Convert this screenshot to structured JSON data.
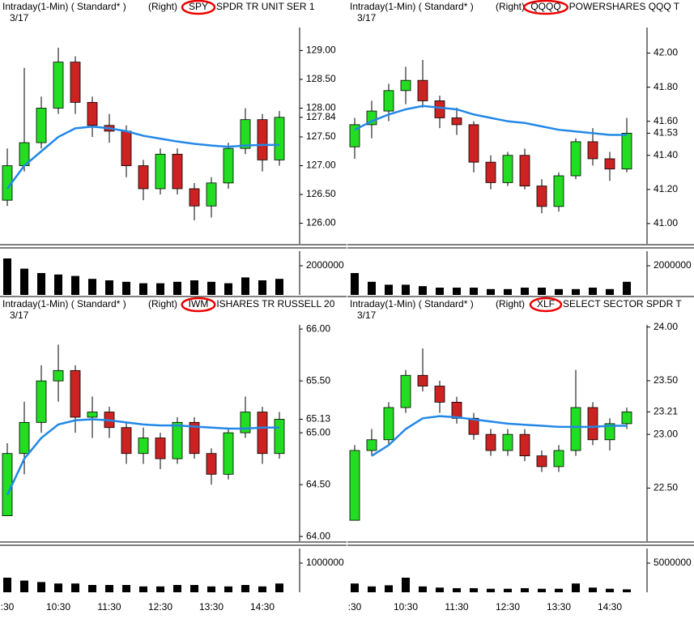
{
  "chart_data": [
    {
      "type": "candlestick",
      "study": "Intraday(1-Min) ( Standard* )",
      "side": "(Right)",
      "ticker": "SPY",
      "name": "SPDR TR UNIT SER 1",
      "date": "3/17",
      "x": [
        "9:30",
        "9:50",
        "10:10",
        "10:30",
        "10:50",
        "11:10",
        "11:30",
        "11:50",
        "12:10",
        "12:30",
        "12:50",
        "13:10",
        "13:30",
        "13:50",
        "14:10",
        "14:30",
        "14:50"
      ],
      "open": [
        126.4,
        127.0,
        127.4,
        128.0,
        128.8,
        128.1,
        127.7,
        127.6,
        127.0,
        126.6,
        127.2,
        126.6,
        126.3,
        126.7,
        127.3,
        127.8,
        127.1
      ],
      "high": [
        127.3,
        128.7,
        128.2,
        129.05,
        128.9,
        128.2,
        127.9,
        127.7,
        127.1,
        127.3,
        127.3,
        126.7,
        126.8,
        127.4,
        128.0,
        127.9,
        127.95
      ],
      "low": [
        126.3,
        126.9,
        127.3,
        127.9,
        127.9,
        127.5,
        127.4,
        126.8,
        126.4,
        126.5,
        126.5,
        126.05,
        126.1,
        126.6,
        127.2,
        126.9,
        127.0
      ],
      "close": [
        127.0,
        127.4,
        128.0,
        128.8,
        128.1,
        127.7,
        127.6,
        127.0,
        126.6,
        127.2,
        126.6,
        126.3,
        126.7,
        127.3,
        127.8,
        127.1,
        127.84
      ],
      "ma": [
        126.6,
        127.0,
        127.25,
        127.5,
        127.65,
        127.68,
        127.65,
        127.6,
        127.52,
        127.47,
        127.42,
        127.38,
        127.35,
        127.33,
        127.35,
        127.36,
        127.36
      ],
      "volume": [
        2500000,
        1800000,
        1500000,
        1400000,
        1300000,
        1100000,
        1000000,
        900000,
        800000,
        800000,
        900000,
        1000000,
        900000,
        800000,
        1200000,
        1000000,
        1100000
      ],
      "ylim": [
        125.67,
        129.4
      ],
      "yticks": [
        {
          "value": 126,
          "label": "126.00"
        },
        {
          "value": 126.5,
          "label": "126.50"
        },
        {
          "value": 127,
          "label": "127.00"
        },
        {
          "value": 127.5,
          "label": "127.50"
        },
        {
          "value": 128,
          "label": "128.00"
        },
        {
          "value": 128.5,
          "label": "128.50"
        },
        {
          "value": 129,
          "label": "129.00"
        }
      ],
      "last_price": 127.84,
      "volume_ylim": [
        0,
        3000000
      ],
      "volume_yticks": [
        2000000
      ],
      "up_color": "#22dd22",
      "down_color": "#cc2222",
      "ma_color": "#2288e8"
    },
    {
      "type": "candlestick",
      "study": "Intraday(1-Min) ( Standard* )",
      "side": "(Right)",
      "ticker": "QQQQ",
      "name": "POWERSHARES QQQ T",
      "date": "3/17",
      "x": [
        "9:30",
        "9:50",
        "10:10",
        "10:30",
        "10:50",
        "11:10",
        "11:30",
        "11:50",
        "12:10",
        "12:30",
        "12:50",
        "13:10",
        "13:30",
        "13:50",
        "14:10",
        "14:30",
        "14:50"
      ],
      "open": [
        41.45,
        41.58,
        41.66,
        41.78,
        41.84,
        41.72,
        41.62,
        41.58,
        41.36,
        41.24,
        41.4,
        41.22,
        41.1,
        41.28,
        41.48,
        41.38,
        41.32
      ],
      "high": [
        41.62,
        41.72,
        41.82,
        41.92,
        41.96,
        41.75,
        41.68,
        41.6,
        41.4,
        41.42,
        41.44,
        41.26,
        41.3,
        41.5,
        41.56,
        41.42,
        41.62
      ],
      "low": [
        41.38,
        41.5,
        41.6,
        41.7,
        41.68,
        41.56,
        41.52,
        41.3,
        41.2,
        41.22,
        41.2,
        41.06,
        41.07,
        41.26,
        41.34,
        41.25,
        41.3
      ],
      "close": [
        41.58,
        41.66,
        41.78,
        41.84,
        41.72,
        41.62,
        41.58,
        41.36,
        41.24,
        41.4,
        41.22,
        41.1,
        41.28,
        41.48,
        41.38,
        41.32,
        41.53
      ],
      "ma": [
        41.55,
        41.6,
        41.64,
        41.67,
        41.69,
        41.68,
        41.67,
        41.64,
        41.62,
        41.6,
        41.59,
        41.57,
        41.55,
        41.54,
        41.53,
        41.52,
        41.52
      ],
      "volume": [
        1500000,
        900000,
        700000,
        700000,
        600000,
        500000,
        500000,
        500000,
        400000,
        400000,
        500000,
        500000,
        400000,
        400000,
        500000,
        400000,
        900000
      ],
      "ylim": [
        40.89,
        42.15
      ],
      "yticks": [
        {
          "value": 41,
          "label": "41.00"
        },
        {
          "value": 41.2,
          "label": "41.20"
        },
        {
          "value": 41.4,
          "label": "41.40"
        },
        {
          "value": 41.6,
          "label": "41.60"
        },
        {
          "value": 41.8,
          "label": "41.80"
        },
        {
          "value": 42,
          "label": "42.00"
        }
      ],
      "last_price": 41.53,
      "volume_ylim": [
        0,
        3000000
      ],
      "volume_yticks": [
        2000000
      ],
      "up_color": "#22dd22",
      "down_color": "#cc2222",
      "ma_color": "#2288e8"
    },
    {
      "type": "candlestick",
      "study": "Intraday(1-Min) ( Standard* )",
      "side": "(Right)",
      "ticker": "IWM",
      "name": "ISHARES TR RUSSELL 20",
      "date": "3/17",
      "x": [
        "9:30",
        "9:50",
        "10:10",
        "10:30",
        "10:50",
        "11:10",
        "11:30",
        "11:50",
        "12:10",
        "12:30",
        "12:50",
        "13:10",
        "13:30",
        "13:50",
        "14:10",
        "14:30",
        "14:50"
      ],
      "open": [
        64.2,
        64.8,
        65.1,
        65.5,
        65.6,
        65.15,
        65.2,
        65.05,
        64.8,
        64.95,
        64.75,
        65.1,
        64.8,
        64.6,
        65.0,
        65.2,
        64.8
      ],
      "high": [
        64.9,
        65.3,
        65.65,
        65.85,
        65.65,
        65.35,
        65.25,
        65.1,
        65.05,
        65.0,
        65.15,
        65.15,
        64.85,
        65.05,
        65.35,
        65.25,
        65.2
      ],
      "low": [
        64.2,
        64.6,
        65.0,
        65.3,
        65.0,
        64.95,
        64.95,
        64.7,
        64.7,
        64.65,
        64.7,
        64.75,
        64.5,
        64.55,
        64.95,
        64.7,
        64.75
      ],
      "close": [
        64.8,
        65.1,
        65.5,
        65.6,
        65.15,
        65.2,
        65.05,
        64.8,
        64.95,
        64.75,
        65.1,
        64.8,
        64.6,
        65.0,
        65.2,
        64.8,
        65.13
      ],
      "ma": [
        64.4,
        64.75,
        64.95,
        65.08,
        65.12,
        65.13,
        65.12,
        65.1,
        65.08,
        65.07,
        65.07,
        65.06,
        65.05,
        65.04,
        65.04,
        65.05,
        65.05
      ],
      "volume": [
        500000,
        400000,
        350000,
        300000,
        300000,
        250000,
        250000,
        250000,
        200000,
        200000,
        250000,
        250000,
        200000,
        200000,
        250000,
        200000,
        300000
      ],
      "ylim": [
        63.97,
        66.04
      ],
      "yticks": [
        {
          "value": 64,
          "label": "64.00"
        },
        {
          "value": 64.5,
          "label": "64.50"
        },
        {
          "value": 65,
          "label": "65.00"
        },
        {
          "value": 65.5,
          "label": "65.50"
        },
        {
          "value": 66,
          "label": "66.00"
        }
      ],
      "last_price": 65.13,
      "volume_ylim": [
        0,
        1500000
      ],
      "volume_yticks": [
        1000000
      ],
      "xticks": [
        {
          "value": "9:30",
          "label": ":30"
        },
        "10:30",
        "11:30",
        "12:30",
        "13:30",
        "14:30"
      ],
      "up_color": "#22dd22",
      "down_color": "#cc2222",
      "ma_color": "#2288e8"
    },
    {
      "type": "candlestick",
      "study": "Intraday(1-Min) ( Standard* )",
      "side": "(Right)",
      "ticker": "XLF",
      "name": "SELECT SECTOR SPDR T",
      "date": "3/17",
      "x": [
        "9:30",
        "9:50",
        "10:10",
        "10:30",
        "10:50",
        "11:10",
        "11:30",
        "11:50",
        "12:10",
        "12:30",
        "12:50",
        "13:10",
        "13:30",
        "13:50",
        "14:10",
        "14:30",
        "14:50"
      ],
      "open": [
        22.2,
        22.85,
        22.95,
        23.25,
        23.55,
        23.45,
        23.3,
        23.15,
        23.0,
        22.85,
        23.0,
        22.8,
        22.7,
        22.85,
        23.25,
        22.95,
        23.1
      ],
      "high": [
        22.9,
        23.05,
        23.3,
        23.6,
        23.8,
        23.5,
        23.35,
        23.2,
        23.05,
        23.05,
        23.05,
        22.85,
        22.9,
        23.6,
        23.3,
        23.15,
        23.25
      ],
      "low": [
        22.2,
        22.8,
        22.9,
        23.2,
        23.4,
        23.2,
        23.1,
        22.95,
        22.8,
        22.8,
        22.75,
        22.65,
        22.65,
        22.8,
        22.9,
        22.85,
        23.05
      ],
      "close": [
        22.85,
        22.95,
        23.25,
        23.55,
        23.45,
        23.3,
        23.15,
        23.0,
        22.85,
        23.0,
        22.8,
        22.7,
        22.85,
        23.25,
        22.95,
        23.1,
        23.21
      ],
      "ma": [
        null,
        22.8,
        22.9,
        23.05,
        23.15,
        23.17,
        23.16,
        23.14,
        23.12,
        23.1,
        23.09,
        23.08,
        23.07,
        23.07,
        23.07,
        23.08,
        23.08
      ],
      "volume": [
        1500000,
        1000000,
        1200000,
        2500000,
        1000000,
        800000,
        700000,
        700000,
        600000,
        600000,
        700000,
        600000,
        600000,
        1500000,
        800000,
        600000,
        500000
      ],
      "ylim": [
        22.02,
        24.02
      ],
      "yticks": [
        {
          "value": 22.5,
          "label": "22.50"
        },
        {
          "value": 23,
          "label": "23.00"
        },
        {
          "value": 23.5,
          "label": "23.50"
        },
        {
          "value": 24,
          "label": "24.00"
        }
      ],
      "last_price": 23.21,
      "volume_ylim": [
        0,
        7500000
      ],
      "volume_yticks": [
        5000000
      ],
      "xticks": [
        {
          "value": "9:30",
          "label": ":30"
        },
        "10:30",
        "11:30",
        "12:30",
        "13:30",
        "14:30"
      ],
      "up_color": "#22dd22",
      "down_color": "#cc2222",
      "ma_color": "#2288e8"
    }
  ]
}
